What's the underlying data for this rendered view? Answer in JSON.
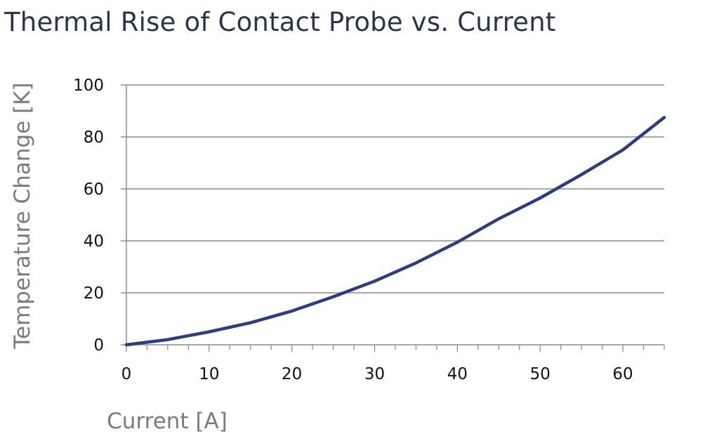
{
  "chart_data": {
    "type": "line",
    "title": "Thermal Rise of Contact Probe vs. Current",
    "xlabel": "Current [A]",
    "ylabel": "Temperature Change [K]",
    "xlim": [
      0,
      65
    ],
    "ylim": [
      0,
      100
    ],
    "x_ticks": [
      0,
      10,
      20,
      30,
      40,
      50,
      60
    ],
    "y_ticks": [
      0,
      20,
      40,
      60,
      80,
      100
    ],
    "grid": "horizontal",
    "legend": "none",
    "series": [
      {
        "color": "#2c3e7e",
        "x": [
          0,
          5,
          10,
          15,
          20,
          25,
          30,
          35,
          40,
          45,
          50,
          55,
          60,
          65
        ],
        "y": [
          0,
          2,
          5,
          8.5,
          13,
          18.5,
          24.5,
          31.5,
          39.5,
          48.5,
          56.5,
          65.5,
          75,
          87.5
        ]
      }
    ]
  }
}
